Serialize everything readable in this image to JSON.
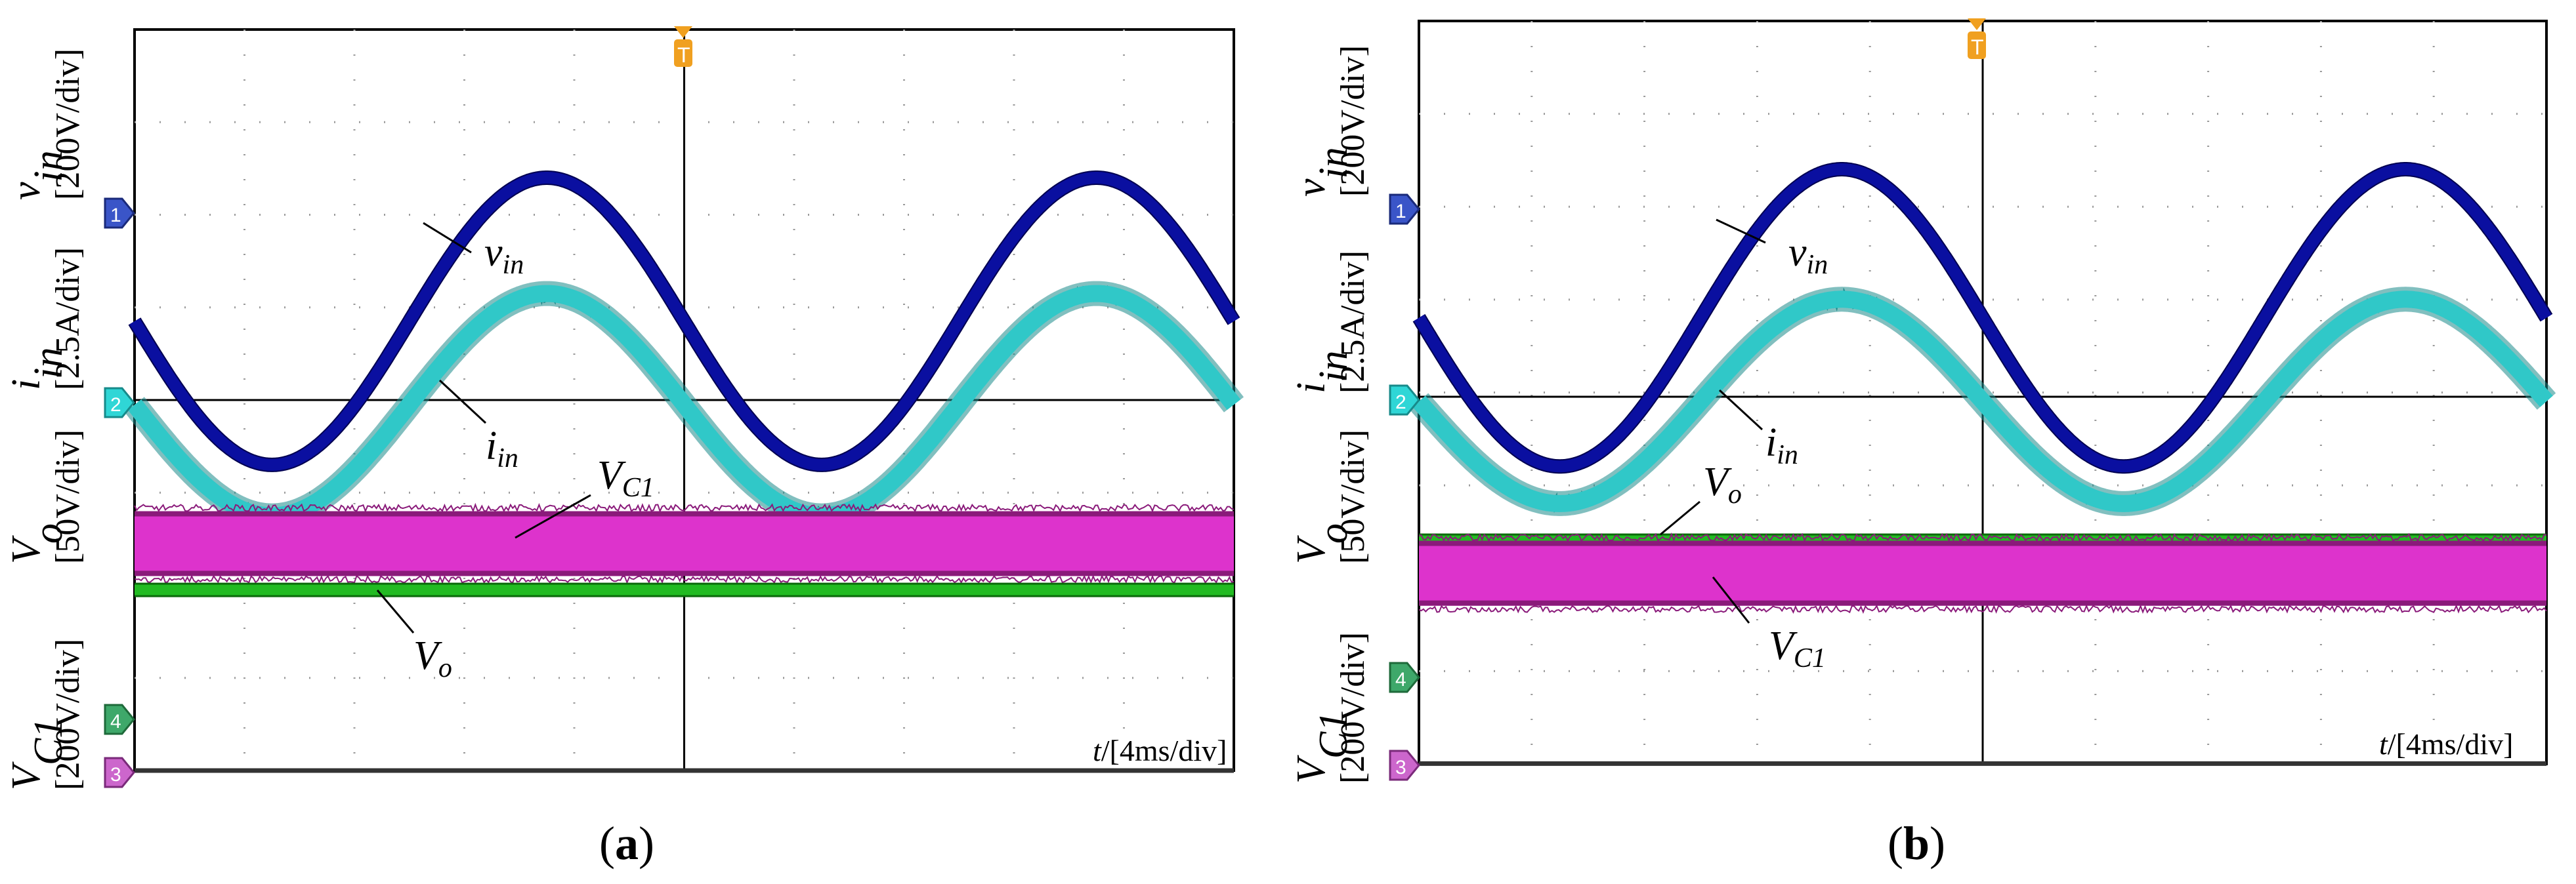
{
  "figure": {
    "panels": [
      {
        "id": "a",
        "caption_open": "(",
        "caption_letter": "a",
        "caption_close": ")",
        "time_unit": "t",
        "time_scale": "/[4ms/div]",
        "channels": [
          {
            "symbol": "v",
            "sub": "in",
            "scale": "[200V/div]",
            "marker": "1",
            "marker_color": "#3a55c8"
          },
          {
            "symbol": "i",
            "sub": "in",
            "scale": "[2.5A/div]",
            "marker": "2",
            "marker_color": "#2fd6d6"
          },
          {
            "symbol": "V",
            "sub": "o",
            "scale": "[50V/div]",
            "marker": "4",
            "marker_color": "#3ea86a"
          },
          {
            "symbol": "V",
            "sub": "C1",
            "scale": "[200V/div]",
            "marker": "3",
            "marker_color": "#cc66cc"
          }
        ],
        "trace_labels": [
          {
            "symbol": "v",
            "sub": "in"
          },
          {
            "symbol": "i",
            "sub": "in"
          },
          {
            "symbol": "V",
            "sub": "C1"
          },
          {
            "symbol": "V",
            "sub": "o"
          }
        ]
      },
      {
        "id": "b",
        "caption_open": "(",
        "caption_letter": "b",
        "caption_close": ")",
        "time_unit": "t",
        "time_scale": "/[4ms/div]",
        "channels": [
          {
            "symbol": "v",
            "sub": "in",
            "scale": "[200V/div]",
            "marker": "1",
            "marker_color": "#3a55c8"
          },
          {
            "symbol": "i",
            "sub": "in",
            "scale": "[2.5A/div]",
            "marker": "2",
            "marker_color": "#2fd6d6"
          },
          {
            "symbol": "V",
            "sub": "o",
            "scale": "[50V/div]",
            "marker": "4",
            "marker_color": "#3ea86a"
          },
          {
            "symbol": "V",
            "sub": "C1",
            "scale": "[200V/div]",
            "marker": "3",
            "marker_color": "#cc66cc"
          }
        ],
        "trace_labels": [
          {
            "symbol": "v",
            "sub": "in"
          },
          {
            "symbol": "i",
            "sub": "in"
          },
          {
            "symbol": "V",
            "sub": "o"
          },
          {
            "symbol": "V",
            "sub": "C1"
          }
        ]
      }
    ],
    "trigger_marker": "T"
  },
  "colors": {
    "vin": "#0a0fa0",
    "iin": "#30c8c8",
    "iin_dark": "#1a8a8a",
    "vo": "#22bb22",
    "vc1": "#dd33cc",
    "vc1_dark": "#8a1a7a",
    "ch3_line": "#333333",
    "trigger": "#f0a020"
  },
  "chart_data": [
    {
      "type": "line",
      "title": "(a)",
      "xlabel": "t/[4ms/div]",
      "x_divisions": 10,
      "y_divisions": 8,
      "xlim_ms": [
        -20,
        20
      ],
      "series": [
        {
          "name": "v_in",
          "units": "V",
          "scale_per_div": 200,
          "waveform": "sine",
          "frequency_hz": 50,
          "amplitude_div": 1.55,
          "phase_at_t0": "zero-crossing falling",
          "offset_div": 0.85
        },
        {
          "name": "i_in",
          "units": "A",
          "scale_per_div": 2.5,
          "waveform": "sine",
          "frequency_hz": 50,
          "amplitude_div": 1.2,
          "in_phase_with": "v_in",
          "offset_div": -0.05
        },
        {
          "name": "V_C1",
          "units": "V",
          "waveform": "dc-ripple",
          "level_div": -1.55,
          "ripple_band_div": 0.7
        },
        {
          "name": "V_o",
          "units": "V",
          "scale_per_div": 50,
          "waveform": "dc",
          "level_div": -2.05
        },
        {
          "name": "ch3_baseline",
          "waveform": "dc",
          "level_div": -4.0
        }
      ]
    },
    {
      "type": "line",
      "title": "(b)",
      "xlabel": "t/[4ms/div]",
      "x_divisions": 10,
      "y_divisions": 8,
      "xlim_ms": [
        -20,
        20
      ],
      "series": [
        {
          "name": "v_in",
          "units": "V",
          "scale_per_div": 200,
          "waveform": "sine",
          "frequency_hz": 50,
          "amplitude_div": 1.6,
          "phase_at_t0": "zero-crossing falling",
          "offset_div": 0.85
        },
        {
          "name": "i_in",
          "units": "A",
          "scale_per_div": 2.5,
          "waveform": "sine",
          "frequency_hz": 50,
          "amplitude_div": 1.1,
          "in_phase_with": "v_in",
          "offset_div": -0.05
        },
        {
          "name": "V_o",
          "units": "V",
          "scale_per_div": 50,
          "waveform": "dc",
          "level_div": -1.55
        },
        {
          "name": "V_C1",
          "units": "V",
          "waveform": "dc-ripple",
          "level_div": -1.9,
          "ripple_band_div": 0.7
        },
        {
          "name": "ch3_baseline",
          "waveform": "dc",
          "level_div": -3.95
        }
      ]
    }
  ]
}
